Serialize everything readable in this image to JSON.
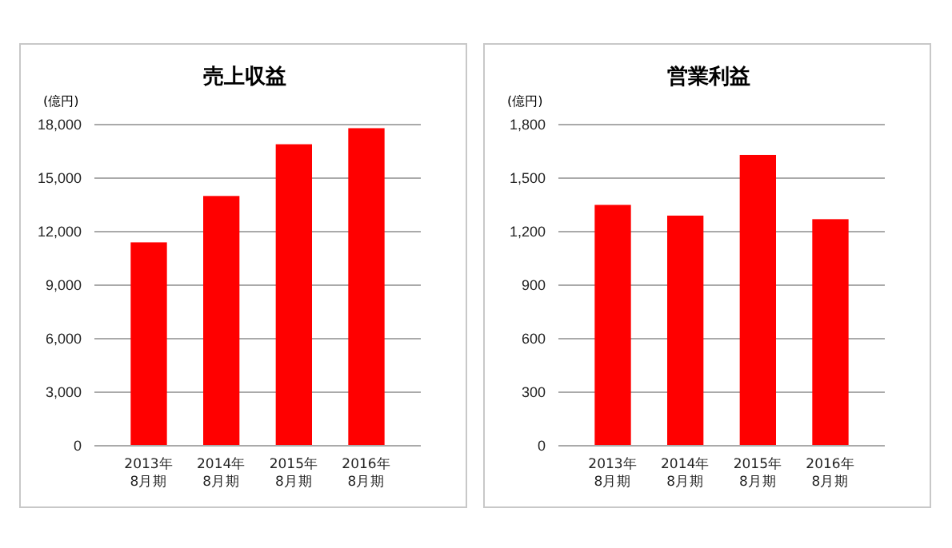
{
  "chart_data": [
    {
      "type": "bar",
      "title": "売上収益",
      "ylabel": "(億円)",
      "categories": [
        "2013年\n8月期",
        "2014年\n8月期",
        "2015年\n8月期",
        "2016年\n8月期"
      ],
      "values": [
        11400,
        14000,
        16900,
        17800
      ],
      "color": "#ff0000",
      "ylim": [
        0,
        18000
      ],
      "yticks": [
        {
          "value": 0,
          "label": "0"
        },
        {
          "value": 3000,
          "label": "3,000"
        },
        {
          "value": 6000,
          "label": "6,000"
        },
        {
          "value": 9000,
          "label": "9,000"
        },
        {
          "value": 12000,
          "label": "12,000"
        },
        {
          "value": 15000,
          "label": "15,000"
        },
        {
          "value": 18000,
          "label": "18,000"
        }
      ],
      "grid": "y"
    },
    {
      "type": "bar",
      "title": "営業利益",
      "ylabel": "(億円)",
      "categories": [
        "2013年\n8月期",
        "2014年\n8月期",
        "2015年\n8月期",
        "2016年\n8月期"
      ],
      "values": [
        1350,
        1290,
        1630,
        1270
      ],
      "color": "#ff0000",
      "ylim": [
        0,
        1800
      ],
      "yticks": [
        {
          "value": 0,
          "label": "0"
        },
        {
          "value": 300,
          "label": "300"
        },
        {
          "value": 600,
          "label": "600"
        },
        {
          "value": 900,
          "label": "900"
        },
        {
          "value": 1200,
          "label": "1,200"
        },
        {
          "value": 1500,
          "label": "1,500"
        },
        {
          "value": 1800,
          "label": "1,800"
        }
      ],
      "grid": "y"
    }
  ]
}
